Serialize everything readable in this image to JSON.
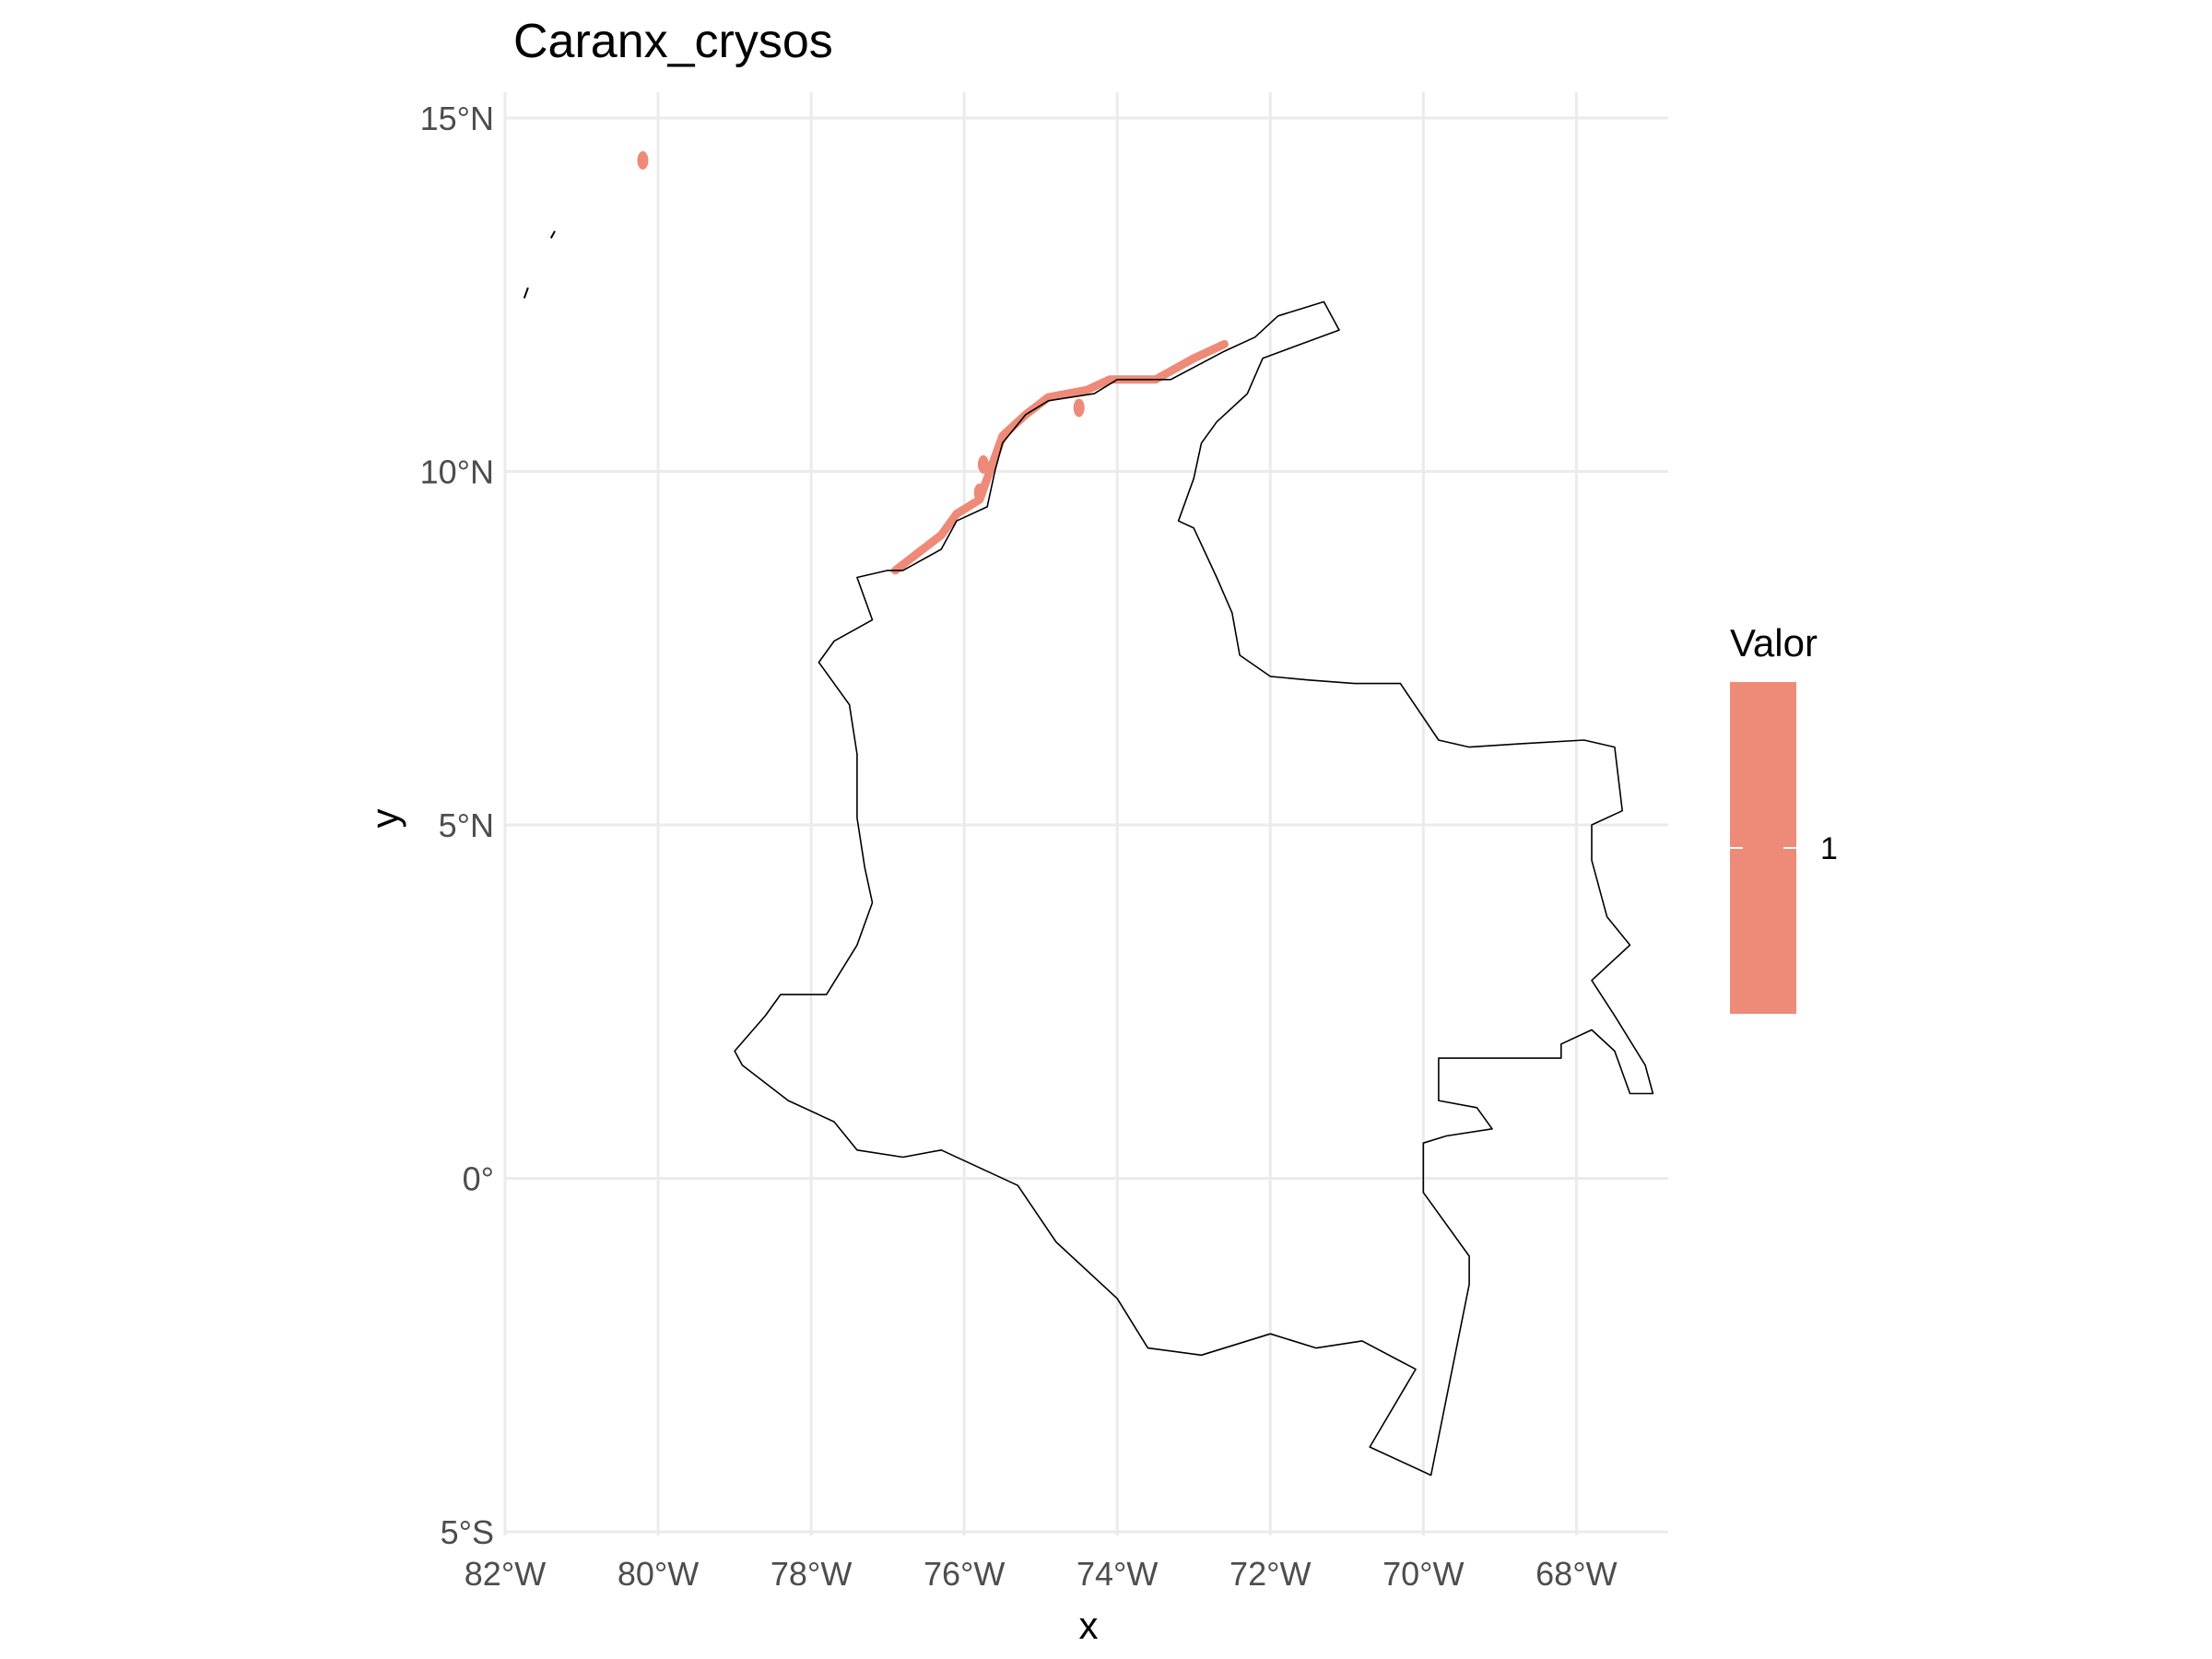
{
  "chart_data": {
    "type": "map",
    "title": "Caranx_crysos",
    "xlabel": "x",
    "ylabel": "y",
    "xlim": [
      -82,
      -66.8
    ],
    "ylim": [
      -5,
      15
    ],
    "x_ticks": [
      {
        "value": -82,
        "label": "82°W"
      },
      {
        "value": -80,
        "label": "80°W"
      },
      {
        "value": -78,
        "label": "78°W"
      },
      {
        "value": -76,
        "label": "76°W"
      },
      {
        "value": -74,
        "label": "74°W"
      },
      {
        "value": -72,
        "label": "72°W"
      },
      {
        "value": -70,
        "label": "70°W"
      },
      {
        "value": -68,
        "label": "68°W"
      }
    ],
    "y_ticks": [
      {
        "value": 15,
        "label": "15°N"
      },
      {
        "value": 10,
        "label": "10°N"
      },
      {
        "value": 5,
        "label": "5°N"
      },
      {
        "value": 0,
        "label": "0°"
      },
      {
        "value": -5,
        "label": "5°S"
      }
    ],
    "grid": true,
    "legend": {
      "title": "Valor",
      "position": "right",
      "entries": [
        {
          "value": 1,
          "label": "1",
          "color": "#EE8A78"
        }
      ]
    },
    "colors": {
      "fill": "#EE8A78",
      "outline": "#000000",
      "grid": "#EBEBEB"
    },
    "outline_lonlat": [
      [
        -71.3,
        12.4
      ],
      [
        -71.1,
        12.0
      ],
      [
        -71.6,
        11.8
      ],
      [
        -72.1,
        11.6
      ],
      [
        -72.3,
        11.1
      ],
      [
        -72.7,
        10.7
      ],
      [
        -72.9,
        10.4
      ],
      [
        -73.0,
        9.9
      ],
      [
        -73.2,
        9.3
      ],
      [
        -73.0,
        9.2
      ],
      [
        -72.7,
        8.5
      ],
      [
        -72.5,
        8.0
      ],
      [
        -72.4,
        7.4
      ],
      [
        -72.0,
        7.1
      ],
      [
        -71.5,
        7.05
      ],
      [
        -70.9,
        7.0
      ],
      [
        -70.3,
        7.0
      ],
      [
        -69.8,
        6.2
      ],
      [
        -69.4,
        6.1
      ],
      [
        -68.7,
        6.15
      ],
      [
        -67.9,
        6.2
      ],
      [
        -67.5,
        6.1
      ],
      [
        -67.4,
        5.2
      ],
      [
        -67.8,
        5.0
      ],
      [
        -67.8,
        4.5
      ],
      [
        -67.6,
        3.7
      ],
      [
        -67.3,
        3.3
      ],
      [
        -67.8,
        2.8
      ],
      [
        -67.5,
        2.3
      ],
      [
        -67.1,
        1.6
      ],
      [
        -67.0,
        1.2
      ],
      [
        -67.3,
        1.2
      ],
      [
        -67.5,
        1.8
      ],
      [
        -67.8,
        2.1
      ],
      [
        -68.2,
        1.9
      ],
      [
        -68.2,
        1.7
      ],
      [
        -69.8,
        1.7
      ],
      [
        -69.8,
        1.1
      ],
      [
        -69.3,
        1.0
      ],
      [
        -69.1,
        0.7
      ],
      [
        -69.7,
        0.6
      ],
      [
        -70.0,
        0.5
      ],
      [
        -70.0,
        -0.2
      ],
      [
        -69.4,
        -1.1
      ],
      [
        -69.4,
        -1.5
      ],
      [
        -69.9,
        -4.2
      ],
      [
        -70.7,
        -3.8
      ],
      [
        -70.1,
        -2.7
      ],
      [
        -70.8,
        -2.3
      ],
      [
        -71.4,
        -2.4
      ],
      [
        -72.0,
        -2.2
      ],
      [
        -72.9,
        -2.5
      ],
      [
        -73.6,
        -2.4
      ],
      [
        -74.0,
        -1.7
      ],
      [
        -74.8,
        -0.9
      ],
      [
        -75.3,
        -0.1
      ],
      [
        -75.7,
        0.1
      ],
      [
        -76.3,
        0.4
      ],
      [
        -76.8,
        0.3
      ],
      [
        -77.4,
        0.4
      ],
      [
        -77.7,
        0.8
      ],
      [
        -78.3,
        1.1
      ],
      [
        -78.9,
        1.6
      ],
      [
        -79.0,
        1.8
      ],
      [
        -78.6,
        2.3
      ],
      [
        -78.4,
        2.6
      ],
      [
        -77.8,
        2.6
      ],
      [
        -77.4,
        3.3
      ],
      [
        -77.2,
        3.9
      ],
      [
        -77.3,
        4.4
      ],
      [
        -77.4,
        5.1
      ],
      [
        -77.4,
        6.0
      ],
      [
        -77.5,
        6.7
      ],
      [
        -77.9,
        7.3
      ],
      [
        -77.7,
        7.6
      ],
      [
        -77.2,
        7.9
      ],
      [
        -77.4,
        8.5
      ],
      [
        -77.0,
        8.6
      ],
      [
        -76.8,
        8.6
      ],
      [
        -76.3,
        8.9
      ],
      [
        -76.1,
        9.3
      ],
      [
        -75.7,
        9.5
      ],
      [
        -75.6,
        10.0
      ],
      [
        -75.5,
        10.4
      ],
      [
        -75.2,
        10.8
      ],
      [
        -74.9,
        11.0
      ],
      [
        -74.3,
        11.1
      ],
      [
        -74.0,
        11.3
      ],
      [
        -73.3,
        11.3
      ],
      [
        -72.6,
        11.7
      ],
      [
        -72.2,
        11.9
      ],
      [
        -71.9,
        12.2
      ],
      [
        -71.6,
        12.3
      ],
      [
        -71.3,
        12.4
      ]
    ],
    "islands_lonlat": [
      [
        [
          -81.75,
          12.45
        ],
        [
          -81.7,
          12.6
        ]
      ],
      [
        [
          -81.4,
          13.3
        ],
        [
          -81.35,
          13.4
        ]
      ]
    ],
    "presence_coast_lonlat": [
      [
        -76.9,
        8.6
      ],
      [
        -76.6,
        8.85
      ],
      [
        -76.3,
        9.1
      ],
      [
        -76.1,
        9.4
      ],
      [
        -75.8,
        9.6
      ],
      [
        -75.7,
        9.9
      ],
      [
        -75.6,
        10.2
      ],
      [
        -75.5,
        10.5
      ],
      [
        -75.2,
        10.8
      ],
      [
        -74.9,
        11.05
      ],
      [
        -74.4,
        11.15
      ],
      [
        -74.1,
        11.3
      ],
      [
        -73.5,
        11.3
      ],
      [
        -73.0,
        11.6
      ],
      [
        -72.6,
        11.8
      ]
    ],
    "presence_blobs_lonlat": [
      [
        -75.8,
        9.7
      ],
      [
        -75.75,
        10.1
      ],
      [
        -74.5,
        10.9
      ],
      [
        -80.2,
        14.4
      ]
    ]
  }
}
